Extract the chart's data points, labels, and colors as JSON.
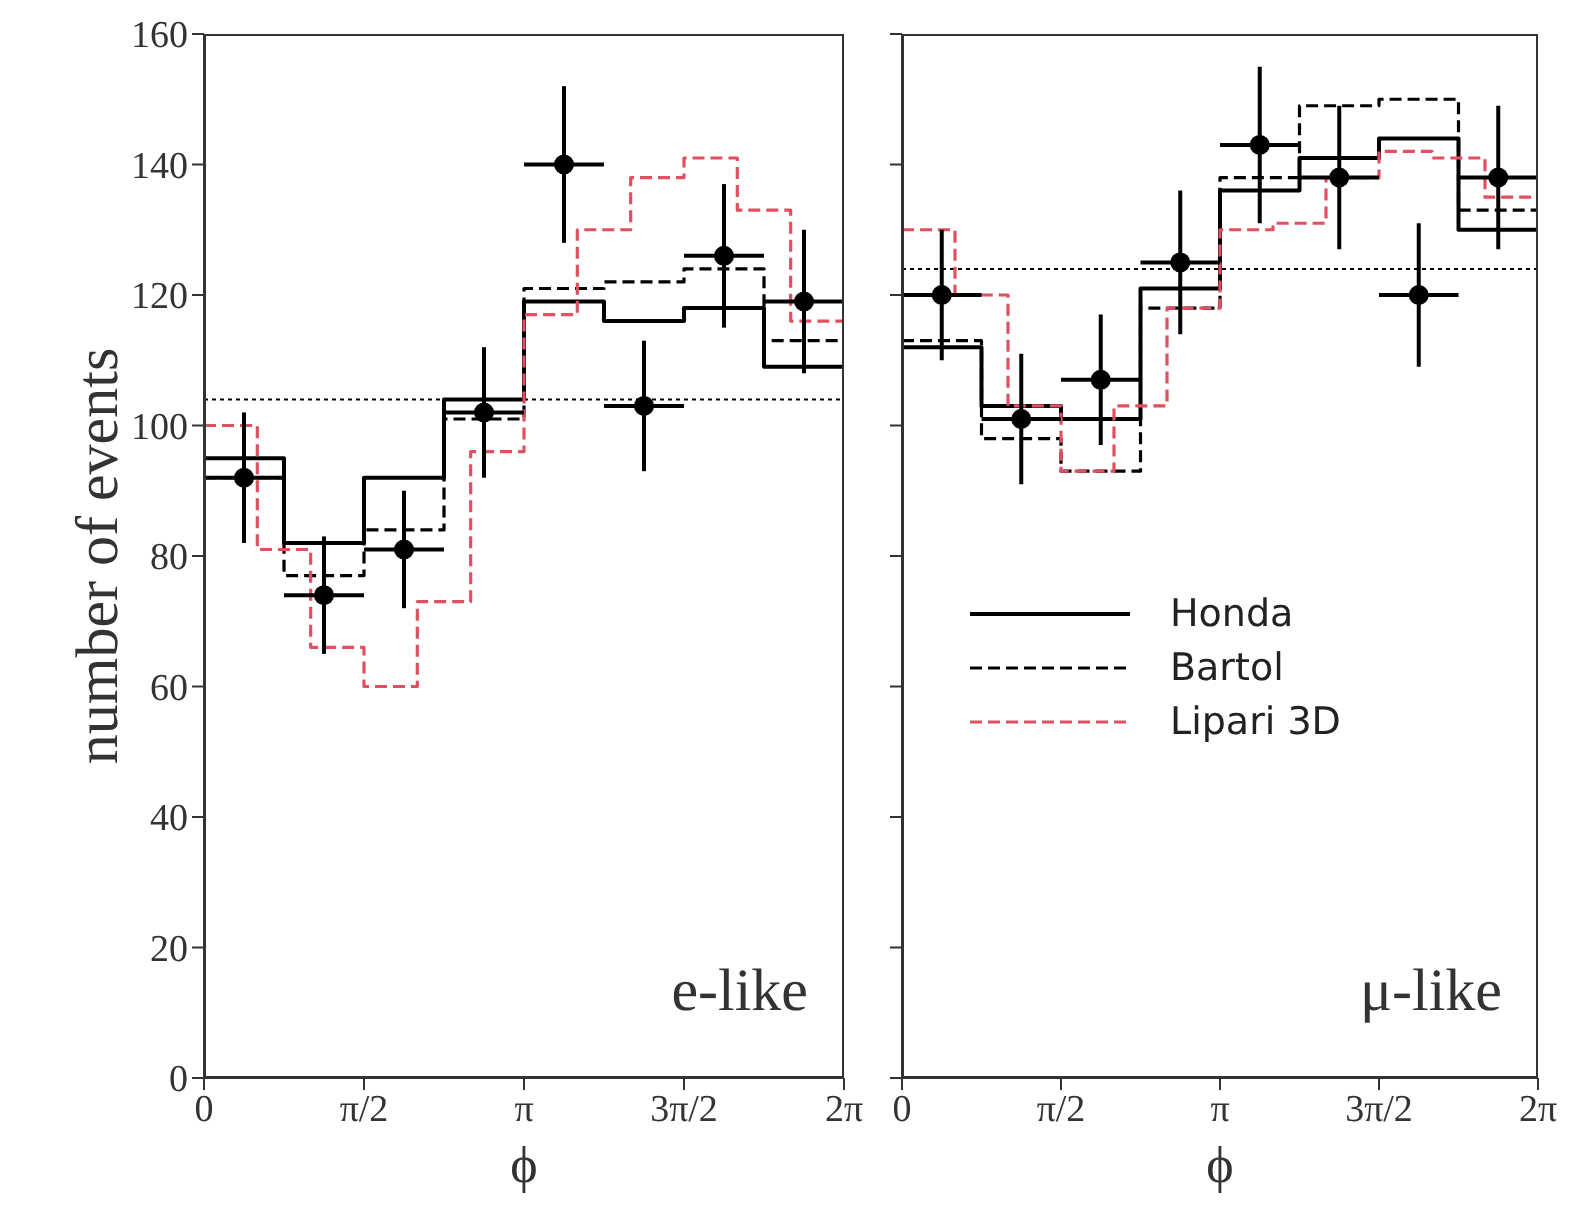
{
  "chart_data": [
    {
      "type": "line",
      "xlabel": "ϕ",
      "ylabel": "number of events",
      "xlim": [
        0,
        6.2832
      ],
      "xticks": [
        {
          "value": 0,
          "label": "0"
        },
        {
          "value": 1.5708,
          "label": "π/2"
        },
        {
          "value": 3.1416,
          "label": "π"
        },
        {
          "value": 4.7124,
          "label": "3π/2"
        },
        {
          "value": 6.2832,
          "label": "2π"
        }
      ],
      "ylim": [
        0,
        160
      ],
      "yticks": [
        0,
        20,
        40,
        60,
        80,
        100,
        120,
        140,
        160
      ],
      "annotations": [
        "e-like"
      ],
      "legend": false,
      "ref_lines": [
        {
          "axis": "y",
          "value": 104,
          "color": "#000000",
          "line_style": "dotted"
        }
      ],
      "series": [
        {
          "type": "step",
          "color": "#000000",
          "line_style": "solid",
          "x": [
            0,
            0.7854,
            1.5708,
            2.3562,
            3.1416,
            3.927,
            4.7124,
            5.4978,
            6.2832
          ],
          "values": [
            95,
            82,
            92,
            104,
            119,
            116,
            118,
            109,
            109
          ]
        },
        {
          "type": "step",
          "color": "#000000",
          "line_style": "dashed",
          "x": [
            0,
            0.7854,
            1.5708,
            2.3562,
            3.1416,
            3.927,
            4.7124,
            5.4978,
            6.2832
          ],
          "values": [
            92,
            77,
            84,
            101,
            121,
            122,
            124,
            113,
            113
          ]
        },
        {
          "type": "step",
          "color": "#e05060",
          "line_style": "dashed",
          "x": [
            0,
            0.5236,
            1.0472,
            1.5708,
            2.0944,
            2.618,
            3.1416,
            3.6652,
            4.1888,
            4.7124,
            5.236,
            5.7596,
            6.2832
          ],
          "values": [
            100,
            81,
            66,
            60,
            73,
            96,
            117,
            130,
            138,
            141,
            133,
            116,
            116
          ]
        },
        {
          "type": "scatter",
          "color": "#000000",
          "marker": "circle",
          "x": [
            0.3927,
            1.1781,
            1.9635,
            2.7489,
            3.5343,
            4.3197,
            5.1051,
            5.8905
          ],
          "values": [
            92,
            74,
            81,
            102,
            140,
            103,
            126,
            119
          ],
          "errors": [
            10,
            9,
            9,
            10,
            12,
            10,
            11,
            11
          ],
          "xerrors": [
            0.3927,
            0.3927,
            0.3927,
            0.3927,
            0.3927,
            0.3927,
            0.3927,
            0.3927
          ]
        }
      ]
    },
    {
      "type": "line",
      "xlabel": "ϕ",
      "xlim": [
        0,
        6.2832
      ],
      "xticks": [
        {
          "value": 0,
          "label": "0"
        },
        {
          "value": 1.5708,
          "label": "π/2"
        },
        {
          "value": 3.1416,
          "label": "π"
        },
        {
          "value": 4.7124,
          "label": "3π/2"
        },
        {
          "value": 6.2832,
          "label": "2π"
        }
      ],
      "ylim": [
        0,
        160
      ],
      "yticks": [
        0,
        20,
        40,
        60,
        80,
        100,
        120,
        140,
        160
      ],
      "tick_labels": "x",
      "annotations": [
        "μ-like"
      ],
      "legend": "center",
      "ref_lines": [
        {
          "axis": "y",
          "value": 124,
          "color": "#000000",
          "line_style": "dotted"
        }
      ],
      "series": [
        {
          "name": "Honda",
          "type": "step",
          "color": "#000000",
          "line_style": "solid",
          "x": [
            0,
            0.7854,
            1.5708,
            2.3562,
            3.1416,
            3.927,
            4.7124,
            5.4978,
            6.2832
          ],
          "values": [
            112,
            103,
            101,
            121,
            136,
            141,
            144,
            130,
            130
          ]
        },
        {
          "name": "Bartol",
          "type": "step",
          "color": "#000000",
          "line_style": "dashed",
          "x": [
            0,
            0.7854,
            1.5708,
            2.3562,
            3.1416,
            3.927,
            4.7124,
            5.4978,
            6.2832
          ],
          "values": [
            113,
            98,
            93,
            118,
            138,
            149,
            150,
            133,
            133
          ]
        },
        {
          "name": "Lipari 3D",
          "type": "step",
          "color": "#e05060",
          "line_style": "dashed",
          "x": [
            0,
            0.5236,
            1.0472,
            1.5708,
            2.0944,
            2.618,
            3.1416,
            3.6652,
            4.1888,
            4.7124,
            5.236,
            5.7596,
            6.2832
          ],
          "values": [
            130,
            120,
            103,
            93,
            103,
            118,
            130,
            131,
            138,
            142,
            141,
            135,
            135
          ]
        },
        {
          "type": "scatter",
          "color": "#000000",
          "marker": "circle",
          "x": [
            0.3927,
            1.1781,
            1.9635,
            2.7489,
            3.5343,
            4.3197,
            5.1051,
            5.8905
          ],
          "values": [
            120,
            101,
            107,
            125,
            143,
            138,
            120,
            138
          ],
          "errors": [
            10,
            10,
            10,
            11,
            12,
            11,
            11,
            11
          ],
          "xerrors": [
            0.3927,
            0.3927,
            0.3927,
            0.3927,
            0.3927,
            0.3927,
            0.3927,
            0.3927
          ]
        }
      ]
    }
  ]
}
